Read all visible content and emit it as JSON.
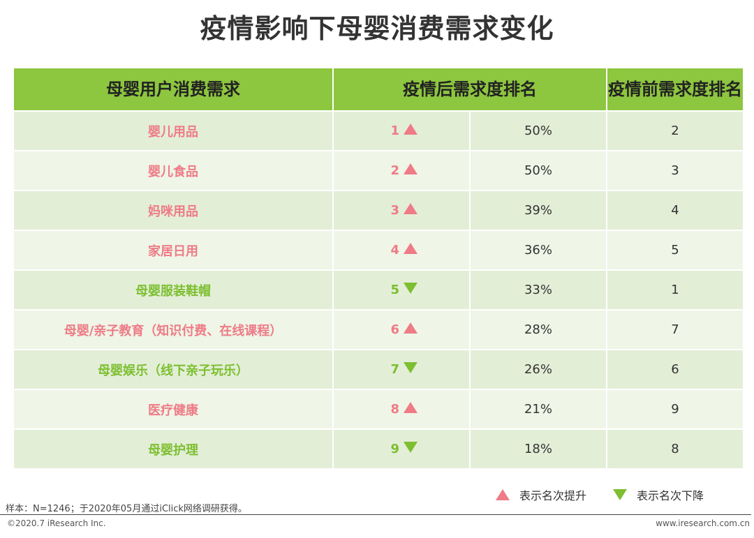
{
  "title": "疫情影响下母婴消费需求变化",
  "chart_data": {
    "type": "table",
    "columns": [
      "母婴用户消费需求",
      "疫情后需求度排名",
      "疫情前需求度排名"
    ],
    "rows": [
      {
        "name": "婴儿用品",
        "rank_after": "1",
        "trend": "up",
        "pct": "50%",
        "rank_before": "2"
      },
      {
        "name": "婴儿食品",
        "rank_after": "2",
        "trend": "up",
        "pct": "50%",
        "rank_before": "3"
      },
      {
        "name": "妈咪用品",
        "rank_after": "3",
        "trend": "up",
        "pct": "39%",
        "rank_before": "4"
      },
      {
        "name": "家居日用",
        "rank_after": "4",
        "trend": "up",
        "pct": "36%",
        "rank_before": "5"
      },
      {
        "name": "母婴服装鞋帽",
        "rank_after": "5",
        "trend": "down",
        "pct": "33%",
        "rank_before": "1"
      },
      {
        "name": "母婴/亲子教育（知识付费、在线课程）",
        "rank_after": "6",
        "trend": "up",
        "pct": "28%",
        "rank_before": "7"
      },
      {
        "name": "母婴娱乐（线下亲子玩乐）",
        "rank_after": "7",
        "trend": "down",
        "pct": "26%",
        "rank_before": "6"
      },
      {
        "name": "医疗健康",
        "rank_after": "8",
        "trend": "up",
        "pct": "21%",
        "rank_before": "9"
      },
      {
        "name": "母婴护理",
        "rank_after": "9",
        "trend": "down",
        "pct": "18%",
        "rank_before": "8"
      }
    ],
    "legend": [
      {
        "marker": "triangle-up",
        "label": "表示名次提升"
      },
      {
        "marker": "triangle-down",
        "label": "表示名次下降"
      }
    ]
  },
  "colors": {
    "header": "#8dc63f",
    "row_odd": "#e3eed7",
    "row_even": "#eff5e7",
    "up": "#ee7b86",
    "down": "#7dbf31"
  },
  "footer": {
    "note": "样本：N=1246；于2020年05月通过iClick网络调研获得。",
    "copyright": "©2020.7 iResearch Inc.",
    "website": "www.iresearch.com.cn"
  }
}
